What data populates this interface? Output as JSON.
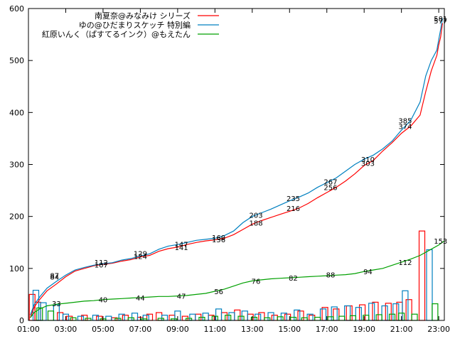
{
  "chart_data": {
    "type": "line",
    "title": "",
    "xlabel": "",
    "ylabel": "",
    "x_ticks": [
      "01:00",
      "03:00",
      "05:00",
      "07:00",
      "09:00",
      "11:00",
      "13:00",
      "15:00",
      "17:00",
      "19:00",
      "21:00",
      "23:00"
    ],
    "y_ticks": [
      0,
      100,
      200,
      300,
      400,
      500,
      600
    ],
    "xlim": [
      1.0,
      23.3
    ],
    "ylim": [
      0,
      600
    ],
    "grid": false,
    "legend_position": "top-center",
    "series": [
      {
        "name": "南夏奈@みなみけ シリーズ",
        "color": "#ff0000",
        "points": [
          [
            1.1,
            5
          ],
          [
            1.3,
            25
          ],
          [
            1.6,
            40
          ],
          [
            2.0,
            57
          ],
          [
            2.5,
            70
          ],
          [
            3.0,
            84
          ],
          [
            3.5,
            95
          ],
          [
            4.0,
            100
          ],
          [
            4.5,
            105
          ],
          [
            5.0,
            108
          ],
          [
            5.5,
            110
          ],
          [
            6.0,
            114
          ],
          [
            6.5,
            117
          ],
          [
            7.0,
            122
          ],
          [
            7.5,
            125
          ],
          [
            8.0,
            133
          ],
          [
            8.5,
            138
          ],
          [
            9.0,
            141
          ],
          [
            9.5,
            146
          ],
          [
            10.0,
            150
          ],
          [
            10.5,
            153
          ],
          [
            11.0,
            155
          ],
          [
            11.5,
            158
          ],
          [
            12.0,
            165
          ],
          [
            12.5,
            175
          ],
          [
            13.0,
            185
          ],
          [
            13.5,
            192
          ],
          [
            14.0,
            198
          ],
          [
            14.5,
            204
          ],
          [
            15.0,
            210
          ],
          [
            15.5,
            216
          ],
          [
            16.0,
            225
          ],
          [
            16.5,
            236
          ],
          [
            17.0,
            246
          ],
          [
            17.5,
            256
          ],
          [
            18.0,
            268
          ],
          [
            18.5,
            282
          ],
          [
            19.0,
            298
          ],
          [
            19.5,
            308
          ],
          [
            20.0,
            326
          ],
          [
            20.5,
            342
          ],
          [
            21.0,
            360
          ],
          [
            21.5,
            374
          ],
          [
            22.0,
            395
          ],
          [
            22.3,
            440
          ],
          [
            22.6,
            480
          ],
          [
            22.9,
            510
          ],
          [
            23.0,
            530
          ],
          [
            23.1,
            545
          ],
          [
            23.2,
            572
          ]
        ],
        "labels": []
      },
      {
        "name": "ゆの@ひだまりスケッチ 特別編",
        "color": "#0080c0",
        "points": [
          [
            1.1,
            10
          ],
          [
            1.3,
            30
          ],
          [
            1.6,
            45
          ],
          [
            2.0,
            62
          ],
          [
            2.5,
            75
          ],
          [
            3.0,
            87
          ],
          [
            3.5,
            97
          ],
          [
            4.0,
            102
          ],
          [
            4.5,
            106
          ],
          [
            5.0,
            109
          ],
          [
            5.5,
            111
          ],
          [
            6.0,
            116
          ],
          [
            6.5,
            119
          ],
          [
            7.0,
            124
          ],
          [
            7.5,
            128
          ],
          [
            8.0,
            137
          ],
          [
            8.5,
            143
          ],
          [
            9.0,
            146
          ],
          [
            9.5,
            150
          ],
          [
            10.0,
            154
          ],
          [
            10.5,
            156
          ],
          [
            11.0,
            158
          ],
          [
            11.5,
            163
          ],
          [
            12.0,
            172
          ],
          [
            12.5,
            188
          ],
          [
            13.0,
            200
          ],
          [
            13.5,
            207
          ],
          [
            14.0,
            214
          ],
          [
            14.5,
            222
          ],
          [
            15.0,
            230
          ],
          [
            15.5,
            237
          ],
          [
            16.0,
            245
          ],
          [
            16.5,
            256
          ],
          [
            17.0,
            265
          ],
          [
            17.5,
            274
          ],
          [
            18.0,
            287
          ],
          [
            18.5,
            300
          ],
          [
            19.0,
            310
          ],
          [
            19.5,
            318
          ],
          [
            20.0,
            330
          ],
          [
            20.5,
            345
          ],
          [
            21.0,
            366
          ],
          [
            21.5,
            385
          ],
          [
            22.0,
            420
          ],
          [
            22.3,
            470
          ],
          [
            22.6,
            500
          ],
          [
            22.9,
            520
          ],
          [
            23.0,
            540
          ],
          [
            23.1,
            560
          ],
          [
            23.2,
            581
          ]
        ],
        "labels": [
          [
            2.4,
            "87"
          ],
          [
            2.4,
            "84"
          ],
          [
            4.9,
            "112"
          ],
          [
            4.9,
            "107"
          ],
          [
            7.0,
            "129"
          ],
          [
            7.0,
            "124"
          ],
          [
            9.2,
            "147"
          ],
          [
            9.2,
            "141"
          ],
          [
            11.2,
            "160"
          ],
          [
            11.2,
            "156"
          ],
          [
            13.2,
            "203"
          ],
          [
            13.2,
            "188"
          ],
          [
            15.2,
            "235"
          ],
          [
            15.2,
            "216"
          ],
          [
            17.2,
            "267"
          ],
          [
            17.2,
            "256"
          ],
          [
            19.2,
            "310"
          ],
          [
            19.2,
            "303"
          ],
          [
            21.2,
            "385"
          ],
          [
            21.2,
            "374"
          ],
          [
            23.1,
            "581"
          ],
          [
            23.1,
            "577"
          ]
        ]
      },
      {
        "name": "紅原いんく（ぱすてるインク）@もえたん",
        "color": "#00a000",
        "points": [
          [
            1.1,
            5
          ],
          [
            1.3,
            15
          ],
          [
            1.6,
            22
          ],
          [
            2.0,
            28
          ],
          [
            2.5,
            31
          ],
          [
            3.0,
            33
          ],
          [
            3.5,
            35
          ],
          [
            4.0,
            37
          ],
          [
            4.5,
            38
          ],
          [
            5.0,
            40
          ],
          [
            5.5,
            41
          ],
          [
            6.0,
            42
          ],
          [
            6.5,
            43
          ],
          [
            7.0,
            44
          ],
          [
            7.5,
            45
          ],
          [
            8.0,
            46
          ],
          [
            8.5,
            46
          ],
          [
            9.0,
            47
          ],
          [
            9.5,
            48
          ],
          [
            10.0,
            50
          ],
          [
            10.5,
            52
          ],
          [
            11.0,
            56
          ],
          [
            11.5,
            60
          ],
          [
            12.0,
            66
          ],
          [
            12.5,
            72
          ],
          [
            13.0,
            76
          ],
          [
            13.5,
            78
          ],
          [
            14.0,
            80
          ],
          [
            14.5,
            81
          ],
          [
            15.0,
            82
          ],
          [
            15.5,
            83
          ],
          [
            16.0,
            84
          ],
          [
            16.5,
            85
          ],
          [
            17.0,
            86
          ],
          [
            17.5,
            87
          ],
          [
            18.0,
            88
          ],
          [
            18.5,
            90
          ],
          [
            19.0,
            94
          ],
          [
            19.5,
            97
          ],
          [
            20.0,
            100
          ],
          [
            20.5,
            106
          ],
          [
            21.0,
            112
          ],
          [
            21.5,
            118
          ],
          [
            22.0,
            125
          ],
          [
            22.5,
            135
          ],
          [
            23.0,
            145
          ],
          [
            23.3,
            153
          ]
        ],
        "labels": [
          [
            2.5,
            "33"
          ],
          [
            5.0,
            "40"
          ],
          [
            7.0,
            "44"
          ],
          [
            9.2,
            "47"
          ],
          [
            11.2,
            "56"
          ],
          [
            13.2,
            "76"
          ],
          [
            15.2,
            "82"
          ],
          [
            17.2,
            "88"
          ],
          [
            19.2,
            "94"
          ],
          [
            21.2,
            "112"
          ],
          [
            23.1,
            "153"
          ]
        ]
      }
    ],
    "bars": [
      {
        "series": 0,
        "values": [
          [
            1.2,
            50
          ],
          [
            1.5,
            35
          ],
          [
            2.7,
            15
          ],
          [
            3.2,
            8
          ],
          [
            4.0,
            10
          ],
          [
            4.8,
            8
          ],
          [
            5.6,
            5
          ],
          [
            6.2,
            10
          ],
          [
            7.0,
            6
          ],
          [
            7.5,
            12
          ],
          [
            8.0,
            15
          ],
          [
            8.7,
            10
          ],
          [
            9.4,
            8
          ],
          [
            10.1,
            12
          ],
          [
            10.8,
            10
          ],
          [
            11.5,
            15
          ],
          [
            12.2,
            20
          ],
          [
            12.9,
            12
          ],
          [
            13.5,
            15
          ],
          [
            14.2,
            10
          ],
          [
            14.9,
            12
          ],
          [
            15.6,
            18
          ],
          [
            16.2,
            10
          ],
          [
            16.9,
            25
          ],
          [
            17.5,
            22
          ],
          [
            18.2,
            28
          ],
          [
            18.9,
            30
          ],
          [
            19.6,
            35
          ],
          [
            20.3,
            33
          ],
          [
            20.9,
            35
          ],
          [
            21.4,
            40
          ],
          [
            22.1,
            172
          ]
        ]
      },
      {
        "series": 1,
        "values": [
          [
            1.4,
            58
          ],
          [
            1.8,
            34
          ],
          [
            2.5,
            30
          ],
          [
            3.0,
            12
          ],
          [
            3.8,
            8
          ],
          [
            4.6,
            10
          ],
          [
            5.3,
            8
          ],
          [
            6.0,
            12
          ],
          [
            6.7,
            14
          ],
          [
            7.3,
            10
          ],
          [
            8.3,
            10
          ],
          [
            9.0,
            18
          ],
          [
            9.8,
            12
          ],
          [
            10.5,
            14
          ],
          [
            11.2,
            22
          ],
          [
            11.9,
            15
          ],
          [
            12.6,
            18
          ],
          [
            13.3,
            12
          ],
          [
            14.0,
            15
          ],
          [
            14.7,
            14
          ],
          [
            15.4,
            20
          ],
          [
            16.1,
            12
          ],
          [
            16.8,
            22
          ],
          [
            17.4,
            26
          ],
          [
            18.1,
            28
          ],
          [
            18.7,
            25
          ],
          [
            19.4,
            33
          ],
          [
            20.1,
            28
          ],
          [
            20.7,
            32
          ],
          [
            21.2,
            57
          ],
          [
            22.5,
            136
          ]
        ]
      },
      {
        "series": 2,
        "values": [
          [
            1.6,
            24
          ],
          [
            2.2,
            18
          ],
          [
            3.4,
            5
          ],
          [
            4.2,
            4
          ],
          [
            5.0,
            3
          ],
          [
            5.8,
            4
          ],
          [
            6.5,
            5
          ],
          [
            7.2,
            3
          ],
          [
            8.1,
            4
          ],
          [
            8.8,
            3
          ],
          [
            9.6,
            4
          ],
          [
            10.3,
            6
          ],
          [
            11.0,
            8
          ],
          [
            11.7,
            10
          ],
          [
            12.4,
            8
          ],
          [
            13.1,
            6
          ],
          [
            13.8,
            5
          ],
          [
            14.5,
            7
          ],
          [
            15.2,
            6
          ],
          [
            15.8,
            5
          ],
          [
            16.5,
            6
          ],
          [
            17.2,
            7
          ],
          [
            17.8,
            8
          ],
          [
            18.4,
            9
          ],
          [
            19.1,
            10
          ],
          [
            19.8,
            11
          ],
          [
            20.5,
            12
          ],
          [
            21.0,
            14
          ],
          [
            21.7,
            12
          ],
          [
            22.8,
            32
          ]
        ]
      }
    ]
  }
}
